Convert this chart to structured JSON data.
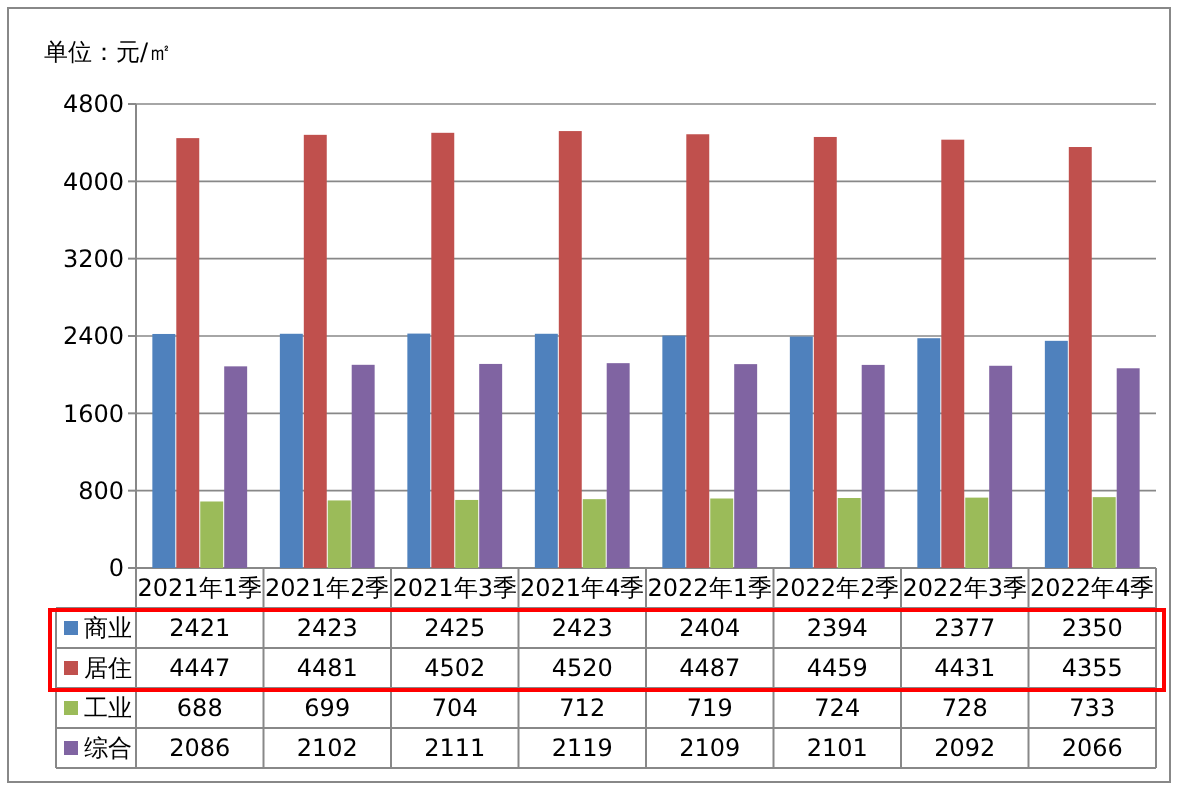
{
  "chart_data": {
    "type": "bar",
    "ylabel": "单位：元/㎡",
    "categories": [
      "2021年1季",
      "2021年2季",
      "2021年3季",
      "2021年4季",
      "2022年1季",
      "2022年2季",
      "2022年3季",
      "2022年4季"
    ],
    "series": [
      {
        "name": "商业",
        "color": "#4f81bd",
        "values": [
          2421,
          2423,
          2425,
          2423,
          2404,
          2394,
          2377,
          2350
        ]
      },
      {
        "name": "居住",
        "color": "#c0504d",
        "values": [
          4447,
          4481,
          4502,
          4520,
          4487,
          4459,
          4431,
          4355
        ]
      },
      {
        "name": "工业",
        "color": "#9bbb59",
        "values": [
          688,
          699,
          704,
          712,
          719,
          724,
          728,
          733
        ]
      },
      {
        "name": "综合",
        "color": "#8064a2",
        "values": [
          2086,
          2102,
          2111,
          2119,
          2109,
          2101,
          2092,
          2066
        ]
      }
    ],
    "ylim": [
      0,
      4800
    ],
    "yticks": [
      0,
      800,
      1600,
      2400,
      3200,
      4000,
      4800
    ],
    "grid": "y",
    "legend": "bottom",
    "data_labels": true
  }
}
